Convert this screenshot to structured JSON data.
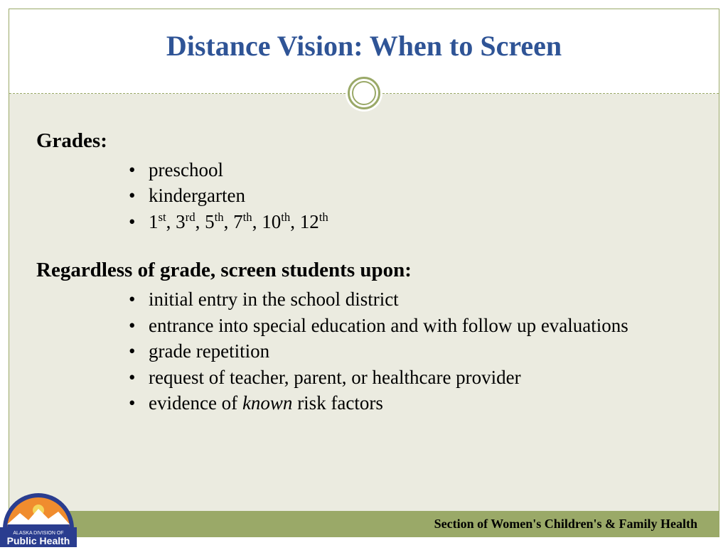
{
  "title": "Distance Vision: When to Screen",
  "grades_heading": "Grades:",
  "grades": {
    "item1": "preschool",
    "item2": "kindergarten",
    "item3_html": "1<sup>st</sup>, 3<sup>rd</sup>, 5<sup>th</sup>, 7<sup>th</sup>, 10<sup>th</sup>, 12<sup>th</sup>"
  },
  "screen_heading": "Regardless of grade, screen students upon:",
  "screen": {
    "item1": "initial entry in the school district",
    "item2": "entrance into special education and with follow up evaluations",
    "item3": "grade repetition",
    "item4": "request of teacher, parent, or healthcare provider",
    "item5_prefix": "evidence of ",
    "item5_italic": "known",
    "item5_suffix": " risk factors"
  },
  "footer": "Section of Women's Children's & Family Health",
  "logo": {
    "line1": "ALASKA DIVISION OF",
    "line2": "Public Health"
  },
  "colors": {
    "title": "#2f5496",
    "accent": "#9aa968",
    "body_bg": "#ebebe0",
    "logo_blue": "#2a3d8f",
    "logo_orange": "#f08c2e"
  }
}
